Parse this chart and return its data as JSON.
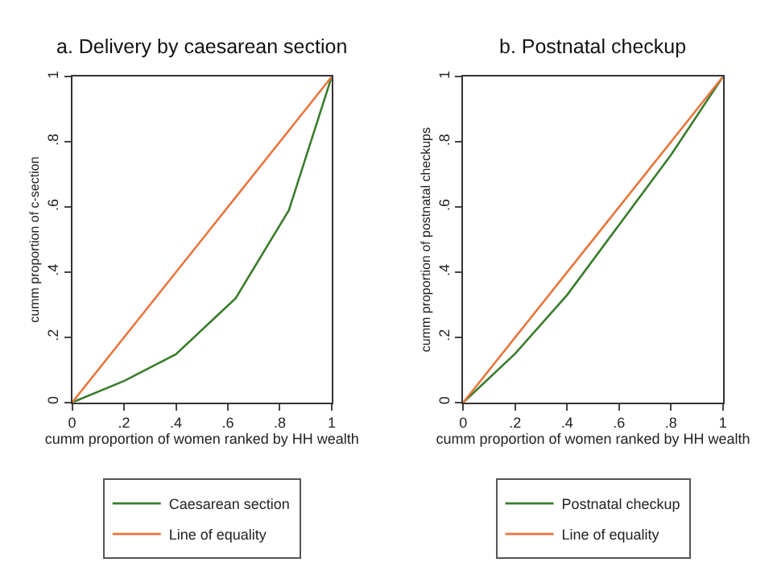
{
  "chart_data": [
    {
      "type": "line",
      "title": "a. Delivery by caesarean section",
      "xlabel": "cumm proportion of women ranked by HH wealth",
      "ylabel": "cumm proportion of c-section",
      "xlim": [
        0,
        1
      ],
      "ylim": [
        0,
        1
      ],
      "xticks": [
        0,
        {
          "value": 0.2,
          "label": ".2"
        },
        {
          "value": 0.4,
          "label": ".4"
        },
        {
          "value": 0.6,
          "label": ".6"
        },
        {
          "value": 0.8,
          "label": ".8"
        },
        1
      ],
      "yticks": [
        0,
        {
          "value": 0.2,
          "label": ".2"
        },
        {
          "value": 0.4,
          "label": ".4"
        },
        {
          "value": 0.6,
          "label": ".6"
        },
        {
          "value": 0.8,
          "label": ".8"
        },
        1
      ],
      "legend": "bottom",
      "marker": "none",
      "series": [
        {
          "name": "Caesarean section",
          "color": "#3a7d2c",
          "x": [
            0,
            0.2,
            0.4,
            0.63,
            0.835,
            1
          ],
          "values": [
            0,
            0.066,
            0.148,
            0.32,
            0.59,
            1
          ]
        },
        {
          "name": "Line of equality",
          "color": "#e8743b",
          "x": [
            0,
            1
          ],
          "values": [
            0,
            1
          ]
        }
      ]
    },
    {
      "type": "line",
      "title": "b. Postnatal checkup",
      "xlabel": "cumm proportion of women ranked by HH wealth",
      "ylabel": "cumm proportion of postnatal checkups",
      "xlim": [
        0,
        1
      ],
      "ylim": [
        0,
        1
      ],
      "xticks": [
        0,
        {
          "value": 0.2,
          "label": ".2"
        },
        {
          "value": 0.4,
          "label": ".4"
        },
        {
          "value": 0.6,
          "label": ".6"
        },
        {
          "value": 0.8,
          "label": ".8"
        },
        1
      ],
      "yticks": [
        0,
        {
          "value": 0.2,
          "label": ".2"
        },
        {
          "value": 0.4,
          "label": ".4"
        },
        {
          "value": 0.6,
          "label": ".6"
        },
        {
          "value": 0.8,
          "label": ".8"
        },
        1
      ],
      "legend": "bottom",
      "marker": "none",
      "series": [
        {
          "name": "Postnatal checkup",
          "color": "#3a7d2c",
          "x": [
            0,
            0.2,
            0.4,
            0.6,
            0.8,
            1
          ],
          "values": [
            0,
            0.15,
            0.33,
            0.545,
            0.76,
            1
          ]
        },
        {
          "name": "Line of equality",
          "color": "#e8743b",
          "x": [
            0,
            1
          ],
          "values": [
            0,
            1
          ]
        }
      ]
    }
  ]
}
